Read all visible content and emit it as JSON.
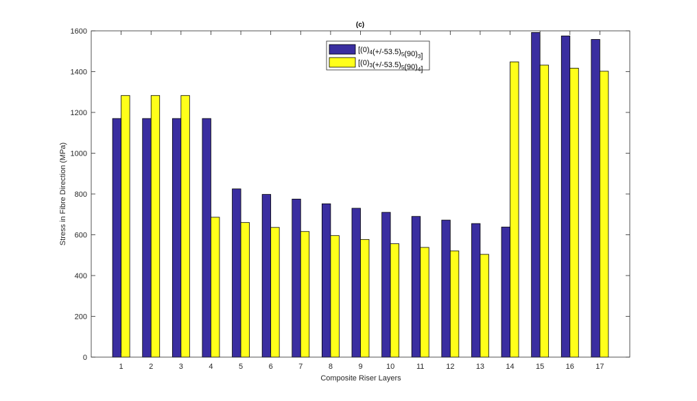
{
  "chart_data": {
    "type": "bar",
    "title": "(c)",
    "xlabel": "Composite Riser Layers",
    "ylabel": "Stress in Fibre Direction (MPa)",
    "ylim": [
      0,
      1600
    ],
    "yticks": [
      0,
      200,
      400,
      600,
      800,
      1000,
      1200,
      1400,
      1600
    ],
    "categories": [
      "1",
      "2",
      "3",
      "4",
      "5",
      "6",
      "7",
      "8",
      "9",
      "10",
      "11",
      "12",
      "13",
      "14",
      "15",
      "16",
      "17"
    ],
    "grid": false,
    "legend_position": "top-center",
    "series": [
      {
        "name": "[(0)4(+/-53.5)5(90)3]",
        "legend": {
          "open": "[(0)",
          "s1": "4",
          "mid": "(+/-53.5)",
          "s2": "5",
          "mid2": "(90)",
          "s3": "3",
          "close": "]"
        },
        "color": "#3a2ea0",
        "values": [
          1170,
          1170,
          1170,
          1170,
          825,
          798,
          775,
          752,
          730,
          710,
          690,
          672,
          655,
          638,
          1592,
          1575,
          1558
        ]
      },
      {
        "name": "[(0)3(+/-53.5)5(90)4]",
        "legend": {
          "open": "[(0)",
          "s1": "3",
          "mid": "(+/-53.5)",
          "s2": "5",
          "mid2": "(90)",
          "s3": "4",
          "close": "]"
        },
        "color": "#ffff1a",
        "values": [
          1283,
          1283,
          1283,
          686,
          660,
          636,
          616,
          596,
          577,
          556,
          538,
          521,
          504,
          1448,
          1432,
          1417,
          1402
        ]
      }
    ]
  }
}
